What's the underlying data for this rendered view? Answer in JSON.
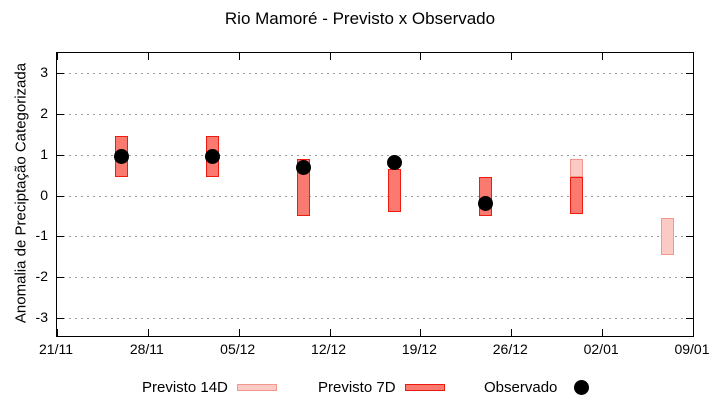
{
  "title": "Rio Mamoré - Previsto x Observado",
  "y_axis": {
    "label": "Anomalia de Preciptação Categorizada",
    "ticks": [
      3,
      2,
      1,
      0,
      -1,
      -2,
      -3
    ]
  },
  "x_axis": {
    "tick_labels": [
      "21/11",
      "28/11",
      "05/12",
      "12/12",
      "19/12",
      "26/12",
      "02/01",
      "09/01"
    ]
  },
  "legend": [
    {
      "label": "Previsto 14D",
      "swatch": "previsto_14d"
    },
    {
      "label": "Previsto 7D",
      "swatch": "previsto_7d"
    },
    {
      "label": "Observado",
      "swatch": "observado"
    }
  ],
  "colors": {
    "previsto_14d_fill": "#fbcac5",
    "previsto_14d_border": "#f2968e",
    "previsto_7d_fill": "#fa7a70",
    "previsto_7d_border": "#ee1c10",
    "observado": "#000000",
    "grid": "#9c9c9c"
  },
  "chart_data": {
    "type": "bar",
    "title": "Rio Mamoré - Previsto x Observado",
    "xlabel": "",
    "ylabel": "Anomalia de Preciptação Categorizada",
    "ylim": [
      -3.45,
      3.5
    ],
    "grid": "horizontal-dashed",
    "legend_position": "bottom",
    "y_ticks": [
      3,
      2,
      1,
      0,
      -1,
      -2,
      -3
    ],
    "x_day_range": [
      0,
      49
    ],
    "x_ticks": [
      {
        "day": 0,
        "label": "21/11"
      },
      {
        "day": 7,
        "label": "28/11"
      },
      {
        "day": 14,
        "label": "05/12"
      },
      {
        "day": 21,
        "label": "12/12"
      },
      {
        "day": 28,
        "label": "19/12"
      },
      {
        "day": 35,
        "label": "26/12"
      },
      {
        "day": 42,
        "label": "02/01"
      },
      {
        "day": 49,
        "label": "09/01"
      }
    ],
    "series": [
      {
        "name": "Previsto 14D",
        "type": "range-bar"
      },
      {
        "name": "Previsto 7D",
        "type": "range-bar"
      },
      {
        "name": "Observado",
        "type": "point"
      }
    ],
    "groups": [
      {
        "day_offset": 5,
        "previsto_14d": null,
        "previsto_7d": [
          0.45,
          1.45
        ],
        "observado": 0.95
      },
      {
        "day_offset": 12,
        "previsto_14d": null,
        "previsto_7d": [
          0.45,
          1.45
        ],
        "observado": 0.95
      },
      {
        "day_offset": 19,
        "previsto_14d": null,
        "previsto_7d": [
          -0.5,
          0.9
        ],
        "observado": 0.7
      },
      {
        "day_offset": 26,
        "previsto_14d": null,
        "previsto_7d": [
          -0.4,
          0.65
        ],
        "observado": 0.8
      },
      {
        "day_offset": 33,
        "previsto_14d": null,
        "previsto_7d": [
          -0.5,
          0.45
        ],
        "observado": -0.2
      },
      {
        "day_offset": 40,
        "previsto_14d": [
          0.45,
          0.9
        ],
        "previsto_7d": [
          -0.45,
          0.45
        ],
        "observado": null
      },
      {
        "day_offset": 47,
        "previsto_14d": [
          -1.45,
          -0.55
        ],
        "previsto_7d": null,
        "observado": null
      }
    ]
  }
}
